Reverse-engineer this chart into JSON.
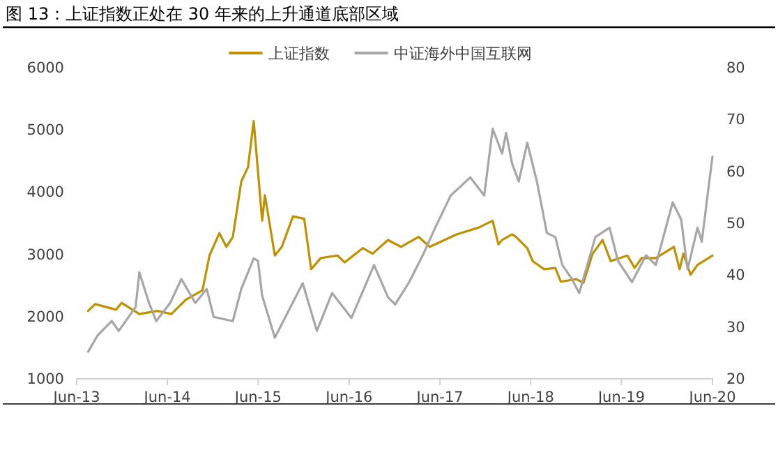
{
  "chart_data": {
    "type": "line",
    "title": "图 13：上证指数正处在 30 年来的上升通道底部区域",
    "legend": "top",
    "grid": false,
    "line_style": "solid",
    "xlim": [
      "2013-06-30",
      "2020-06-30"
    ],
    "xticks": [
      {
        "value": "2013-06-30",
        "label": "Jun-13"
      },
      {
        "value": "2014-06-30",
        "label": "Jun-14"
      },
      {
        "value": "2015-06-30",
        "label": "Jun-15"
      },
      {
        "value": "2016-06-30",
        "label": "Jun-16"
      },
      {
        "value": "2017-06-30",
        "label": "Jun-17"
      },
      {
        "value": "2018-06-30",
        "label": "Jun-18"
      },
      {
        "value": "2019-06-30",
        "label": "Jun-19"
      },
      {
        "value": "2020-06-30",
        "label": "Jun-20"
      }
    ],
    "ylim": [
      1000,
      6000
    ],
    "yticks": [
      1000,
      2000,
      3000,
      4000,
      5000,
      6000
    ],
    "y2lim": [
      20,
      80
    ],
    "y2ticks": [
      20,
      30,
      40,
      50,
      60,
      70,
      80
    ],
    "series": [
      {
        "name": "上证指数",
        "color": "#c09000",
        "x": [
          "2013-08-15",
          "2013-09-12",
          "2013-12-05",
          "2013-12-28",
          "2014-03-09",
          "2014-05-21",
          "2014-07-16",
          "2014-09-12",
          "2014-11-18",
          "2014-12-16",
          "2015-01-25",
          "2015-02-22",
          "2015-03-20",
          "2015-04-23",
          "2015-05-20",
          "2015-06-12",
          "2015-07-16",
          "2015-07-27",
          "2015-09-05",
          "2015-10-03",
          "2015-11-17",
          "2016-01-01",
          "2016-01-29",
          "2016-03-08",
          "2016-05-14",
          "2016-06-12",
          "2016-08-24",
          "2016-10-02",
          "2016-12-03",
          "2017-01-24",
          "2017-04-05",
          "2017-05-20",
          "2017-09-05",
          "2017-12-03",
          "2018-01-28",
          "2018-02-20",
          "2018-03-07",
          "2018-04-16",
          "2018-05-02",
          "2018-06-16",
          "2018-07-08",
          "2018-08-23",
          "2018-10-07",
          "2018-10-29",
          "2018-12-30",
          "2019-01-28",
          "2019-03-06",
          "2019-04-15",
          "2019-05-18",
          "2019-07-24",
          "2019-08-22",
          "2019-09-19",
          "2019-11-15",
          "2020-01-27",
          "2020-02-19",
          "2020-03-05",
          "2020-04-03",
          "2020-05-01",
          "2020-06-30"
        ],
        "values": [
          2080,
          2190,
          2100,
          2210,
          2030,
          2080,
          2030,
          2260,
          2410,
          2970,
          3330,
          3110,
          3270,
          4160,
          4390,
          5130,
          3530,
          3940,
          2970,
          3110,
          3600,
          3560,
          2750,
          2930,
          2970,
          2860,
          3090,
          3000,
          3220,
          3110,
          3270,
          3110,
          3310,
          3420,
          3530,
          3150,
          3220,
          3310,
          3270,
          3090,
          2880,
          2750,
          2770,
          2550,
          2590,
          2530,
          3000,
          3220,
          2880,
          2970,
          2770,
          2930,
          2930,
          3110,
          2750,
          3000,
          2660,
          2820,
          2970
        ]
      },
      {
        "name": "中证海外中国互联网",
        "color": "#a6a6a6",
        "axis": "y2",
        "x": [
          "2013-08-15",
          "2013-09-23",
          "2013-11-18",
          "2013-12-16",
          "2014-02-22",
          "2014-03-09",
          "2014-04-17",
          "2014-05-16",
          "2014-07-11",
          "2014-08-25",
          "2014-10-20",
          "2014-12-05",
          "2015-01-02",
          "2015-03-20",
          "2015-04-23",
          "2015-06-12",
          "2015-06-29",
          "2015-07-16",
          "2015-09-05",
          "2015-10-09",
          "2015-12-26",
          "2016-02-21",
          "2016-04-22",
          "2016-07-09",
          "2016-10-08",
          "2016-12-03",
          "2017-01-01",
          "2017-02-26",
          "2017-04-22",
          "2017-06-11",
          "2017-08-12",
          "2017-10-30",
          "2017-12-25",
          "2018-01-28",
          "2018-03-07",
          "2018-03-23",
          "2018-04-16",
          "2018-05-13",
          "2018-06-16",
          "2018-07-25",
          "2018-09-03",
          "2018-10-07",
          "2018-11-04",
          "2018-12-13",
          "2019-01-11",
          "2019-03-17",
          "2019-05-13",
          "2019-06-16",
          "2019-08-11",
          "2019-10-07",
          "2019-11-15",
          "2020-01-22",
          "2020-02-25",
          "2020-03-22",
          "2020-05-01",
          "2020-05-18",
          "2020-06-15",
          "2020-06-30"
        ],
        "values": [
          25.1,
          28.3,
          31.0,
          29.1,
          33.7,
          40.4,
          34.5,
          31.0,
          34.5,
          39.1,
          34.5,
          37.2,
          31.8,
          31.0,
          37.2,
          43.1,
          42.6,
          35.9,
          27.8,
          31.0,
          38.3,
          29.1,
          36.4,
          31.6,
          41.8,
          35.6,
          34.2,
          38.5,
          43.7,
          49.0,
          55.2,
          58.7,
          55.2,
          68.1,
          63.3,
          67.3,
          61.4,
          57.9,
          65.4,
          57.9,
          48.0,
          47.2,
          41.8,
          39.1,
          36.4,
          47.2,
          49.0,
          42.6,
          38.5,
          43.7,
          41.8,
          53.9,
          50.6,
          41.0,
          49.0,
          46.3,
          57.1,
          62.7
        ]
      }
    ]
  }
}
